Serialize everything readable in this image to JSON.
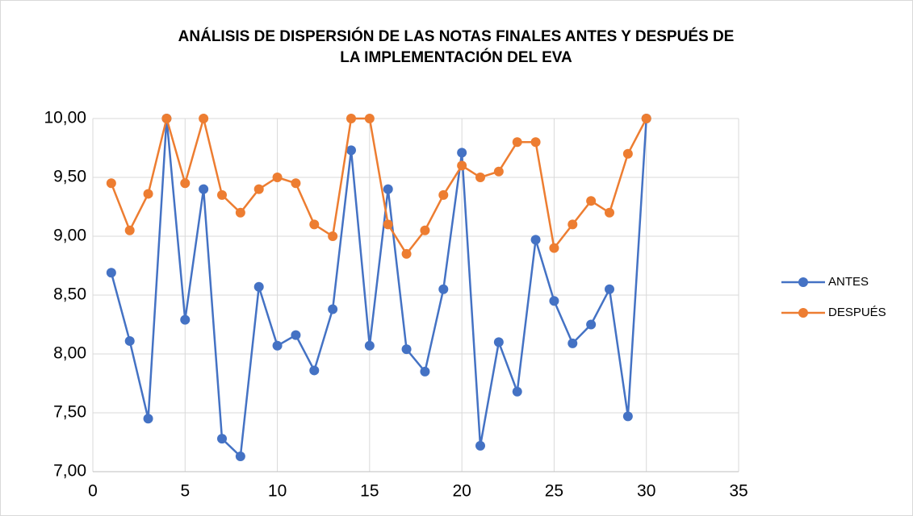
{
  "chart_data": {
    "type": "line",
    "title": "ANÁLISIS DE DISPERSIÓN DE LAS NOTAS FINALES ANTES Y DESPUÉS DE",
    "subtitle": "LA IMPLEMENTACIÓN DEL EVA",
    "x": [
      1,
      2,
      3,
      4,
      5,
      6,
      7,
      8,
      9,
      10,
      11,
      12,
      13,
      14,
      15,
      16,
      17,
      18,
      19,
      20,
      21,
      22,
      23,
      24,
      25,
      26,
      27,
      28,
      29,
      30
    ],
    "series": [
      {
        "name": "ANTES",
        "color": "#4472c4",
        "values": [
          8.69,
          8.11,
          7.45,
          10.0,
          8.29,
          9.4,
          7.28,
          7.13,
          8.57,
          8.07,
          8.16,
          7.86,
          8.38,
          9.73,
          8.07,
          9.4,
          8.04,
          7.85,
          8.55,
          9.71,
          7.22,
          8.1,
          7.68,
          8.97,
          8.45,
          8.09,
          8.25,
          8.55,
          7.47,
          10.0
        ]
      },
      {
        "name": "DESPUÉS",
        "color": "#ed7d31",
        "values": [
          9.45,
          9.05,
          9.36,
          10.0,
          9.45,
          10.0,
          9.35,
          9.2,
          9.4,
          9.5,
          9.45,
          9.1,
          9.0,
          10.0,
          10.0,
          9.1,
          8.85,
          9.05,
          9.35,
          9.6,
          9.5,
          9.55,
          9.8,
          9.8,
          8.9,
          9.1,
          9.3,
          9.2,
          9.7,
          10.0
        ]
      }
    ],
    "xlim": [
      0,
      35
    ],
    "xticks": [
      0,
      5,
      10,
      15,
      20,
      25,
      30,
      35
    ],
    "ylim": [
      7,
      10
    ],
    "yticks": [
      {
        "value": 7,
        "label": "7,00"
      },
      {
        "value": 7.5,
        "label": "7,50"
      },
      {
        "value": 8,
        "label": "8,00"
      },
      {
        "value": 8.5,
        "label": "8,50"
      },
      {
        "value": 9,
        "label": "9,00"
      },
      {
        "value": 9.5,
        "label": "9,50"
      },
      {
        "value": 10,
        "label": "10,00"
      }
    ],
    "grid": true,
    "legend": "right"
  }
}
